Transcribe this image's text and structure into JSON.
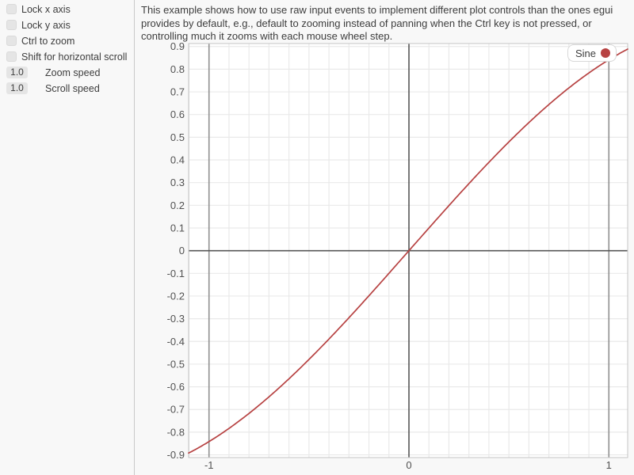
{
  "sidebar": {
    "checkboxes": [
      {
        "label": "Lock x axis",
        "checked": false
      },
      {
        "label": "Lock y axis",
        "checked": false
      },
      {
        "label": "Ctrl to zoom",
        "checked": false
      },
      {
        "label": "Shift for horizontal scroll",
        "checked": false
      }
    ],
    "drag_values": [
      {
        "value": "1.0",
        "label": "Zoom speed"
      },
      {
        "value": "1.0",
        "label": "Scroll speed"
      }
    ]
  },
  "main": {
    "description": "This example shows how to use raw input events to implement different plot controls than the ones egui provides by default, e.g., default to zooming instead of panning when the Ctrl key is not pressed, or controlling much it zooms with each mouse wheel step."
  },
  "chart_data": {
    "type": "line",
    "title": "",
    "xlabel": "",
    "ylabel": "",
    "x_range": [
      -1.102,
      1.094
    ],
    "y_range": [
      -0.912,
      0.913
    ],
    "grid_step": 0.1,
    "grid": true,
    "x_ticks": [
      -1,
      0,
      1
    ],
    "y_ticks": [
      0.9,
      0.8,
      0.7,
      0.6,
      0.5,
      0.4,
      0.3,
      0.2,
      0.1,
      0,
      -0.1,
      -0.2,
      -0.3,
      -0.4,
      -0.5,
      -0.6,
      -0.7,
      -0.8,
      -0.9
    ],
    "series": [
      {
        "name": "Sine",
        "function": "sin",
        "color": "#b74242",
        "points": [
          [
            -1.0,
            -0.841
          ],
          [
            -0.9,
            -0.783
          ],
          [
            -0.8,
            -0.717
          ],
          [
            -0.7,
            -0.644
          ],
          [
            -0.6,
            -0.565
          ],
          [
            -0.5,
            -0.479
          ],
          [
            -0.4,
            -0.389
          ],
          [
            -0.3,
            -0.296
          ],
          [
            -0.2,
            -0.199
          ],
          [
            -0.1,
            -0.1
          ],
          [
            0.0,
            0.0
          ],
          [
            0.1,
            0.1
          ],
          [
            0.2,
            0.199
          ],
          [
            0.3,
            0.296
          ],
          [
            0.4,
            0.389
          ],
          [
            0.5,
            0.479
          ],
          [
            0.6,
            0.565
          ],
          [
            0.7,
            0.644
          ],
          [
            0.8,
            0.717
          ],
          [
            0.9,
            0.783
          ],
          [
            1.0,
            0.841
          ]
        ]
      }
    ],
    "legend": {
      "position": "right-top",
      "entries": [
        {
          "label": "Sine",
          "color": "#b74242"
        }
      ]
    },
    "colors": {
      "plot_bg": "#ffffff",
      "plot_border": "#c4c4c4",
      "grid_minor": "#e9e9e9",
      "grid_unit": "#909090",
      "grid_zero": "#565656",
      "tick_text": "#525252",
      "page_bg": "#f8f8f8"
    }
  }
}
